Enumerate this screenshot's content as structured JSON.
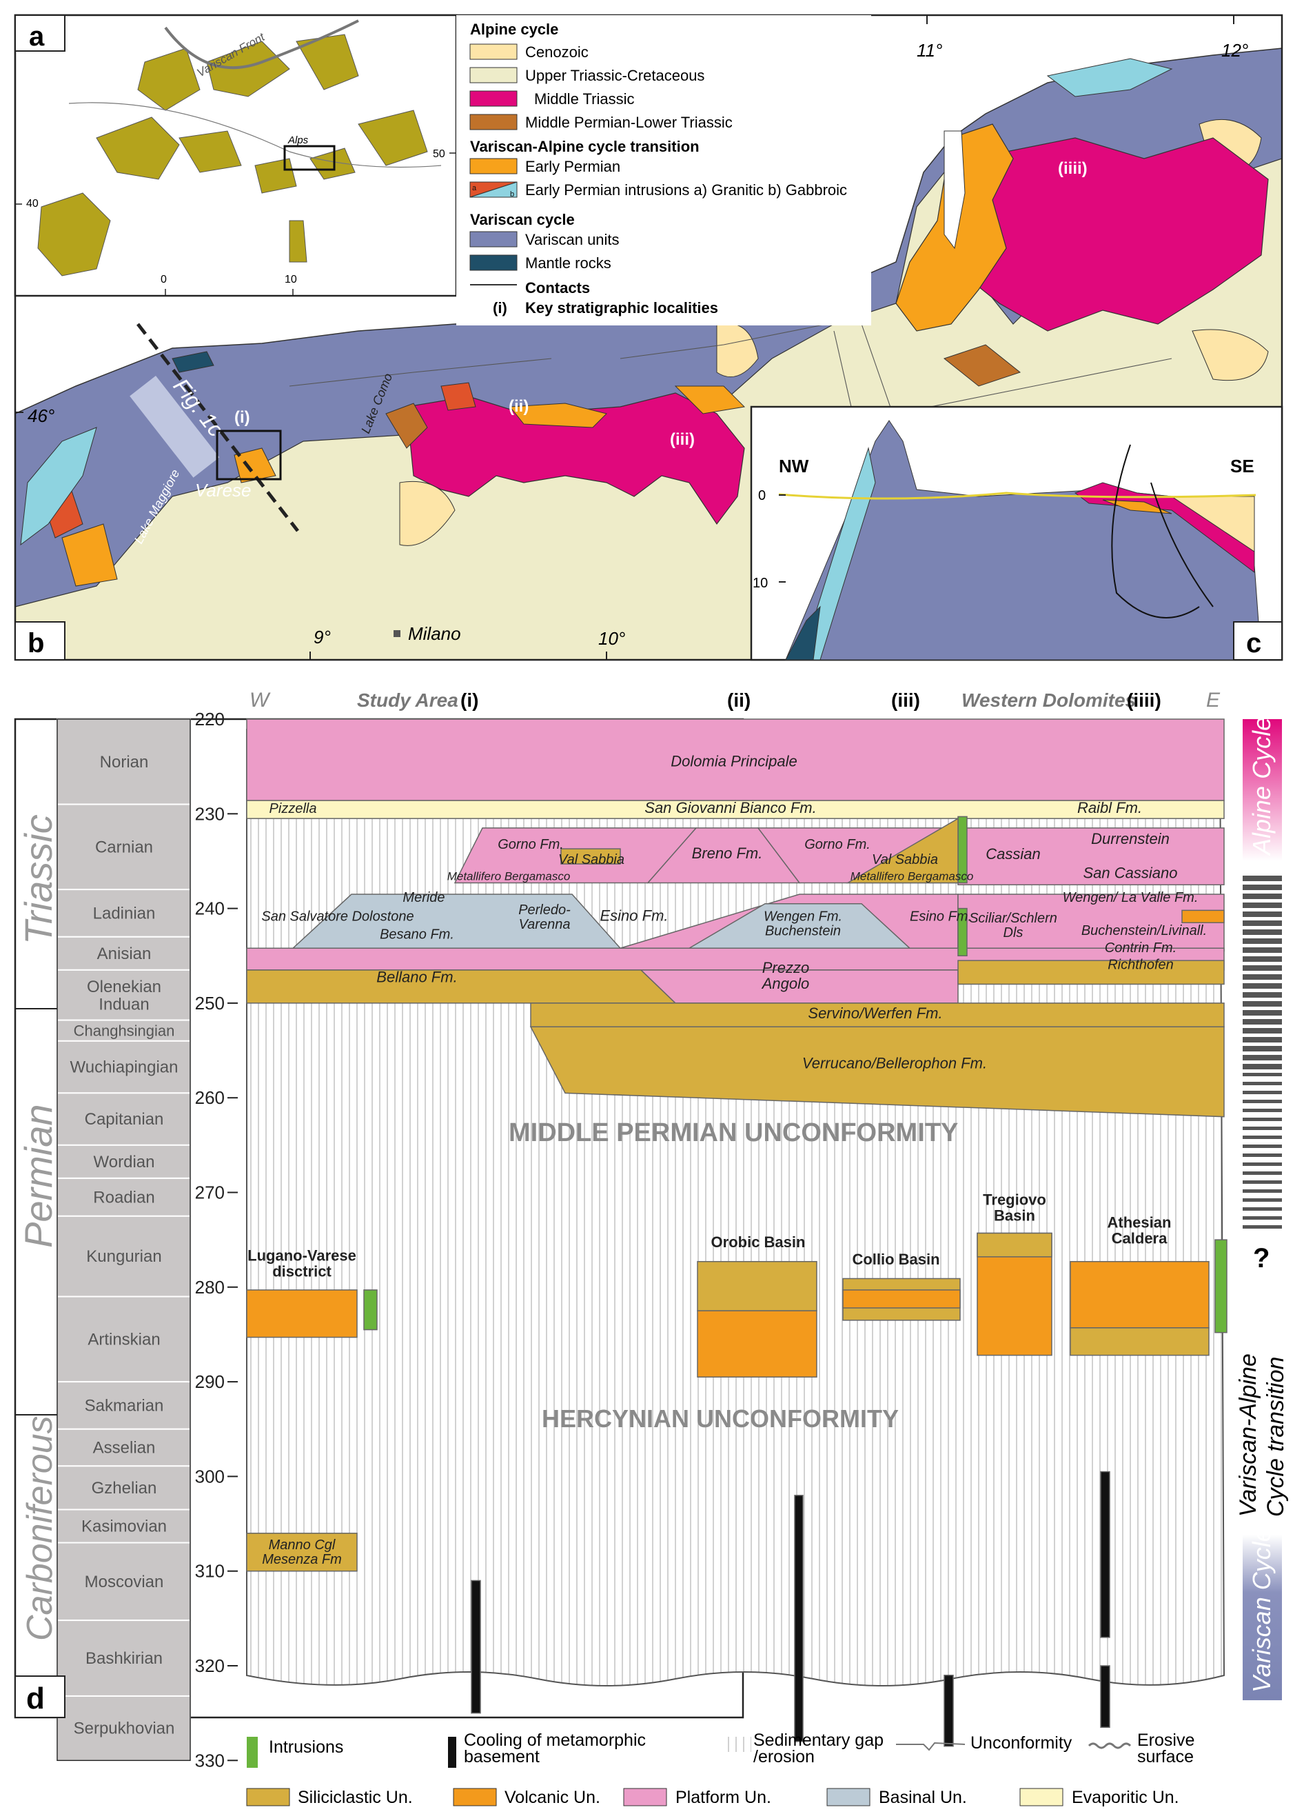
{
  "panels": {
    "a": "a",
    "b": "b",
    "c": "c",
    "d": "d"
  },
  "inset_a": {
    "labels": {
      "variscan_front": "Variscan Front",
      "alps": "Alps"
    },
    "ticks": {
      "lat40": "40",
      "lat50": "50",
      "lon0": "0",
      "lon10": "10"
    }
  },
  "legend": {
    "alpine_title": "Alpine cycle",
    "alpine": [
      "Cenozoic",
      "Upper Triassic-Cretaceous",
      "Middle Triassic",
      "Middle Permian-Lower Triassic"
    ],
    "transition_title": "Variscan-Alpine cycle transition",
    "transition": [
      "Early Permian",
      "Early Permian intrusions a) Granitic b) Gabbroic"
    ],
    "variscan_title": "Variscan cycle",
    "variscan": [
      "Variscan units",
      "Mantle rocks"
    ],
    "contacts": "Contacts",
    "key_localities_marker": "(i)",
    "key_localities": "Key stratigraphic localities",
    "swatch_ab": [
      "a",
      "b"
    ],
    "colors": {
      "cenozoic": "#fde5a8",
      "upper_triassic": "#eeecc9",
      "middle_triassic": "#e0087c",
      "middle_permian": "#c0722a",
      "early_permian": "#f7a21b",
      "variscan": "#7b84b3",
      "mantle": "#1f4f68",
      "granitic": "#e0532b",
      "gabbroic": "#8ed3e0"
    }
  },
  "map_b": {
    "lon_ticks": [
      "9°",
      "10°",
      "11°",
      "12°"
    ],
    "lat_tick": "46°",
    "places": {
      "milano": "Milano",
      "varese": "Varese",
      "lake_maggiore": "Lake Maggiore",
      "lake_como": "Lake Como",
      "fig1c": "Fig. 1c"
    },
    "localities": [
      "(i)",
      "(ii)",
      "(iii)",
      "(iiii)"
    ]
  },
  "section_c": {
    "nw": "NW",
    "se": "SE",
    "depth_ticks": [
      "0",
      "10"
    ]
  },
  "chart_d": {
    "header": {
      "w": "W",
      "study_area": "Study Area",
      "loc_i": "(i)",
      "loc_ii": "(ii)",
      "loc_iii": "(iii)",
      "western_dolomites": "Western Dolomites",
      "loc_iiii": "(iiii)",
      "e": "E"
    },
    "periods": [
      "Triassic",
      "Permian",
      "Carboniferous"
    ],
    "stages": [
      "Norian",
      "Carnian",
      "Ladinian",
      "Anisian",
      "Olenekian Induan",
      "Changhsingian",
      "Wuchiapingian",
      "Capitanian",
      "Wordian",
      "Roadian",
      "Kungurian",
      "Artinskian",
      "Sakmarian",
      "Asselian",
      "Gzhelian",
      "Kasimovian",
      "Moscovian",
      "Bashkirian",
      "Serpukhovian"
    ],
    "age_ticks": [
      220,
      230,
      240,
      250,
      260,
      270,
      280,
      290,
      300,
      310,
      320,
      330
    ],
    "formations": {
      "dolomia_principale": "Dolomia Principale",
      "pizzella": "Pizzella",
      "san_giovanni": "San Giovanni Bianco Fm.",
      "raibl": "Raibl Fm.",
      "gorno1": "Gorno Fm.",
      "val_sabbia1": "Val Sabbia",
      "metallifero1": "Metallifero Bergamasco",
      "breno": "Breno Fm.",
      "gorno2": "Gorno Fm.",
      "val_sabbia2": "Val Sabbia",
      "metallifero2": "Metallifero Bergamasco",
      "cassian": "Cassian",
      "durrenstein": "Durrenstein",
      "san_cassiano": "San Cassiano",
      "meride": "Meride",
      "san_salvatore": "San Salvatore Dolostone",
      "perledo": "Perledo-\nVarenna",
      "besano": "Besano Fm.",
      "esino1": "Esino Fm.",
      "wengen": "Wengen Fm.\nBuchenstein",
      "esino2": "Esino Fm.",
      "sciliar": "Sciliar/Schlern\nDls",
      "wengen_valle": "Wengen/ La Valle Fm.",
      "buchenstein": "Buchenstein/Livinall.",
      "contrin": "Contrin Fm.",
      "richthofen": "Richthofen",
      "bellano": "Bellano Fm.",
      "prezzo": "Prezzo\nAngolo",
      "servino": "Servino/Werfen Fm.",
      "verrucano": "Verrucano/Bellerophon Fm.",
      "manno": "Manno Cgl\nMesenza Fm"
    },
    "unconformities": {
      "middle_permian": "MIDDLE PERMIAN UNCONFORMITY",
      "hercynian": "HERCYNIAN UNCONFORMITY"
    },
    "basins": {
      "lugano": "Lugano-Varese\ndisctrict",
      "orobic": "Orobic Basin",
      "collio": "Collio Basin",
      "tregiovo": "Tregiovo\nBasin",
      "athesian": "Athesian\nCaldera"
    },
    "cycles": {
      "alpine": "Alpine Cycle",
      "question": "?",
      "transition": "Variscan-Alpine\nCycle transition",
      "variscan": "Variscan Cycle"
    },
    "legend": {
      "intrusions": "Intrusions",
      "cooling": "Cooling of metamorphic\nbasement",
      "gap": "Sedimentary gap\n/erosion",
      "unconformity": "Unconformity",
      "erosive": "Erosive\nsurface",
      "siliciclastic": "Siliciclastic Un.",
      "volcanic": "Volcanic Un.",
      "platform": "Platform Un.",
      "basinal": "Basinal Un.",
      "evaporitic": "Evaporitic Un."
    },
    "colors": {
      "siliciclastic": "#d6ae3f",
      "volcanic": "#f39a1c",
      "platform": "#ec9cc8",
      "basinal": "#bccbd6",
      "evaporitic": "#fdf6c2",
      "intrusion": "#6ab43c",
      "stage": "#c9c6c6",
      "alpine_bar": "#e0087c",
      "variscan_bar": "#7b84b3"
    }
  }
}
